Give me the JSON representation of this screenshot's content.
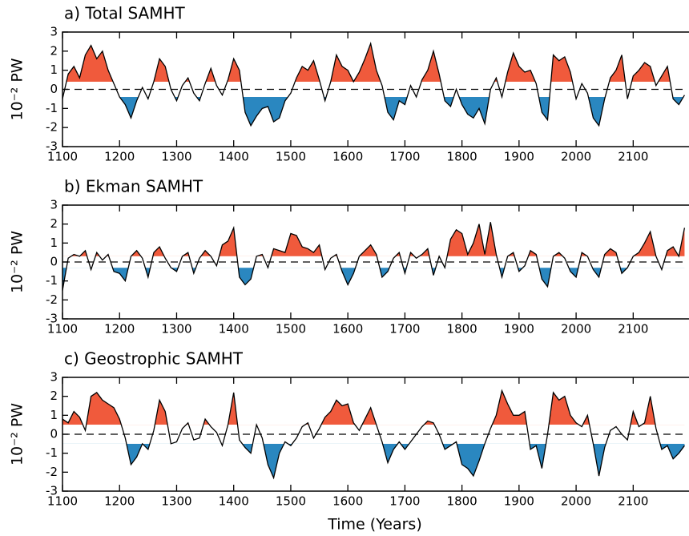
{
  "chart_data": [
    {
      "type": "line",
      "title": "a) Total SAMHT",
      "ylabel": "10⁻² PW",
      "x": [
        1100,
        1110,
        1120,
        1130,
        1140,
        1150,
        1160,
        1170,
        1180,
        1190,
        1200,
        1210,
        1220,
        1230,
        1240,
        1250,
        1260,
        1270,
        1280,
        1290,
        1300,
        1310,
        1320,
        1330,
        1340,
        1350,
        1360,
        1370,
        1380,
        1390,
        1400,
        1410,
        1420,
        1430,
        1440,
        1450,
        1460,
        1470,
        1480,
        1490,
        1500,
        1510,
        1520,
        1530,
        1540,
        1550,
        1560,
        1570,
        1580,
        1590,
        1600,
        1610,
        1620,
        1630,
        1640,
        1650,
        1660,
        1670,
        1680,
        1690,
        1700,
        1710,
        1720,
        1730,
        1740,
        1750,
        1760,
        1770,
        1780,
        1790,
        1800,
        1810,
        1820,
        1830,
        1840,
        1850,
        1860,
        1870,
        1880,
        1890,
        1900,
        1910,
        1920,
        1930,
        1940,
        1950,
        1960,
        1970,
        1980,
        1990,
        2000,
        2010,
        2020,
        2030,
        2040,
        2050,
        2060,
        2070,
        2080,
        2090,
        2100,
        2110,
        2120,
        2130,
        2140,
        2150,
        2160,
        2170,
        2180,
        2190
      ],
      "values": [
        -0.5,
        0.8,
        1.2,
        0.6,
        1.8,
        2.3,
        1.6,
        2.0,
        1.0,
        0.3,
        -0.4,
        -0.8,
        -1.5,
        -0.6,
        0.1,
        -0.5,
        0.4,
        1.6,
        1.2,
        0.0,
        -0.6,
        0.2,
        0.6,
        -0.2,
        -0.6,
        0.3,
        1.1,
        0.2,
        -0.3,
        0.5,
        1.6,
        1.0,
        -1.2,
        -1.9,
        -1.4,
        -1.0,
        -0.9,
        -1.7,
        -1.5,
        -0.6,
        -0.2,
        0.6,
        1.2,
        1.0,
        1.5,
        0.5,
        -0.6,
        0.4,
        1.8,
        1.2,
        1.0,
        0.4,
        0.9,
        1.6,
        2.4,
        1.0,
        0.2,
        -1.2,
        -1.6,
        -0.6,
        -0.8,
        0.2,
        -0.4,
        0.5,
        1.0,
        2.0,
        0.8,
        -0.6,
        -0.9,
        0.0,
        -0.8,
        -1.3,
        -1.5,
        -1.0,
        -1.8,
        0.0,
        0.6,
        -0.4,
        0.9,
        1.9,
        1.2,
        0.9,
        1.0,
        0.3,
        -1.2,
        -1.6,
        1.8,
        1.5,
        1.7,
        0.9,
        -0.5,
        0.3,
        -0.2,
        -1.5,
        -1.9,
        -0.5,
        0.6,
        1.0,
        1.8,
        -0.5,
        0.7,
        1.0,
        1.4,
        1.2,
        0.2,
        0.7,
        1.2,
        -0.5,
        -0.8,
        -0.3
      ],
      "shade_above": 0.4,
      "shade_below": -0.4,
      "color_above": "#f05a3c",
      "color_below": "#2a87c0",
      "xlim": [
        1100,
        2195
      ],
      "xticks": [
        1100,
        1200,
        1300,
        1400,
        1500,
        1600,
        1700,
        1800,
        1900,
        2000,
        2100
      ],
      "ylim": [
        -3,
        3
      ],
      "yticks": [
        -3,
        -2,
        -1,
        0,
        1,
        2,
        3
      ]
    },
    {
      "type": "line",
      "title": "b) Ekman SAMHT",
      "ylabel": "10⁻² PW",
      "x": [
        1100,
        1110,
        1120,
        1130,
        1140,
        1150,
        1160,
        1170,
        1180,
        1190,
        1200,
        1210,
        1220,
        1230,
        1240,
        1250,
        1260,
        1270,
        1280,
        1290,
        1300,
        1310,
        1320,
        1330,
        1340,
        1350,
        1360,
        1370,
        1380,
        1390,
        1400,
        1410,
        1420,
        1430,
        1440,
        1450,
        1460,
        1470,
        1480,
        1490,
        1500,
        1510,
        1520,
        1530,
        1540,
        1550,
        1560,
        1570,
        1580,
        1590,
        1600,
        1610,
        1620,
        1630,
        1640,
        1650,
        1660,
        1670,
        1680,
        1690,
        1700,
        1710,
        1720,
        1730,
        1740,
        1750,
        1760,
        1770,
        1780,
        1790,
        1800,
        1810,
        1820,
        1830,
        1840,
        1850,
        1860,
        1870,
        1880,
        1890,
        1900,
        1910,
        1920,
        1930,
        1940,
        1950,
        1960,
        1970,
        1980,
        1990,
        2000,
        2010,
        2020,
        2030,
        2040,
        2050,
        2060,
        2070,
        2080,
        2090,
        2100,
        2110,
        2120,
        2130,
        2140,
        2150,
        2160,
        2170,
        2180,
        2190
      ],
      "values": [
        -1.5,
        0.2,
        0.4,
        0.3,
        0.6,
        -0.4,
        0.5,
        0.1,
        0.4,
        -0.5,
        -0.6,
        -1.0,
        0.3,
        0.6,
        0.2,
        -0.8,
        0.5,
        0.8,
        0.2,
        -0.3,
        -0.5,
        0.3,
        0.5,
        -0.6,
        0.2,
        0.6,
        0.3,
        -0.2,
        0.9,
        1.1,
        1.8,
        -0.8,
        -1.2,
        -0.9,
        0.3,
        0.4,
        -0.3,
        0.7,
        0.6,
        0.5,
        1.5,
        1.4,
        0.8,
        0.7,
        0.5,
        0.9,
        -0.4,
        0.2,
        0.4,
        -0.5,
        -1.2,
        -0.6,
        0.3,
        0.6,
        0.9,
        0.4,
        -0.8,
        -0.5,
        0.2,
        0.5,
        -0.6,
        0.5,
        0.2,
        0.4,
        0.7,
        -0.7,
        0.3,
        -0.3,
        1.2,
        1.7,
        1.5,
        0.4,
        1.0,
        2.0,
        0.4,
        2.1,
        0.4,
        -0.8,
        0.3,
        0.5,
        -0.5,
        -0.2,
        0.6,
        0.4,
        -0.9,
        -1.3,
        0.3,
        0.5,
        0.2,
        -0.5,
        -0.8,
        0.5,
        0.3,
        -0.4,
        -0.8,
        0.4,
        0.7,
        0.5,
        -0.6,
        -0.3,
        0.3,
        0.5,
        1.0,
        1.6,
        0.3,
        -0.4,
        0.6,
        0.8,
        0.3,
        1.8
      ],
      "shade_above": 0.3,
      "shade_below": -0.3,
      "color_above": "#f05a3c",
      "color_below": "#2a87c0",
      "xlim": [
        1100,
        2195
      ],
      "xticks": [
        1100,
        1200,
        1300,
        1400,
        1500,
        1600,
        1700,
        1800,
        1900,
        2000,
        2100
      ],
      "ylim": [
        -3,
        3
      ],
      "yticks": [
        -3,
        -2,
        -1,
        0,
        1,
        2,
        3
      ]
    },
    {
      "type": "line",
      "title": "c) Geostrophic SAMHT",
      "ylabel": "10⁻² PW",
      "xlabel": "Time (Years)",
      "x": [
        1100,
        1110,
        1120,
        1130,
        1140,
        1150,
        1160,
        1170,
        1180,
        1190,
        1200,
        1210,
        1220,
        1230,
        1240,
        1250,
        1260,
        1270,
        1280,
        1290,
        1300,
        1310,
        1320,
        1330,
        1340,
        1350,
        1360,
        1370,
        1380,
        1390,
        1400,
        1410,
        1420,
        1430,
        1440,
        1450,
        1460,
        1470,
        1480,
        1490,
        1500,
        1510,
        1520,
        1530,
        1540,
        1550,
        1560,
        1570,
        1580,
        1590,
        1600,
        1610,
        1620,
        1630,
        1640,
        1650,
        1660,
        1670,
        1680,
        1690,
        1700,
        1710,
        1720,
        1730,
        1740,
        1750,
        1760,
        1770,
        1780,
        1790,
        1800,
        1810,
        1820,
        1830,
        1840,
        1850,
        1860,
        1870,
        1880,
        1890,
        1900,
        1910,
        1920,
        1930,
        1940,
        1950,
        1960,
        1970,
        1980,
        1990,
        2000,
        2010,
        2020,
        2030,
        2040,
        2050,
        2060,
        2070,
        2080,
        2090,
        2100,
        2110,
        2120,
        2130,
        2140,
        2150,
        2160,
        2170,
        2180,
        2190
      ],
      "values": [
        0.8,
        0.6,
        1.2,
        0.9,
        0.2,
        2.0,
        2.2,
        1.8,
        1.6,
        1.4,
        0.8,
        -0.2,
        -1.6,
        -1.2,
        -0.5,
        -0.8,
        0.2,
        1.8,
        1.2,
        -0.5,
        -0.4,
        0.3,
        0.6,
        -0.3,
        -0.2,
        0.8,
        0.4,
        0.1,
        -0.6,
        0.5,
        2.2,
        -0.3,
        -0.7,
        -1.0,
        0.5,
        -0.2,
        -1.6,
        -2.3,
        -1.0,
        -0.4,
        -0.6,
        -0.2,
        0.4,
        0.6,
        -0.2,
        0.3,
        0.9,
        1.2,
        1.8,
        1.5,
        1.6,
        0.6,
        0.2,
        0.8,
        1.4,
        0.5,
        -0.4,
        -1.5,
        -0.8,
        -0.4,
        -0.8,
        -0.4,
        0.0,
        0.4,
        0.7,
        0.6,
        0.0,
        -0.8,
        -0.6,
        -0.4,
        -1.6,
        -1.8,
        -2.2,
        -1.4,
        -0.5,
        0.3,
        1.0,
        2.3,
        1.6,
        1.0,
        1.0,
        1.2,
        -0.8,
        -0.6,
        -1.8,
        0.0,
        2.2,
        1.8,
        2.0,
        1.0,
        0.6,
        0.4,
        1.0,
        -0.5,
        -2.2,
        -0.7,
        0.2,
        0.4,
        0.0,
        -0.3,
        1.2,
        0.4,
        0.6,
        2.0,
        0.3,
        -0.8,
        -0.6,
        -1.3,
        -1.0,
        -0.6
      ],
      "shade_above": 0.5,
      "shade_below": -0.5,
      "color_above": "#f05a3c",
      "color_below": "#2a87c0",
      "xlim": [
        1100,
        2195
      ],
      "xticks": [
        1100,
        1200,
        1300,
        1400,
        1500,
        1600,
        1700,
        1800,
        1900,
        2000,
        2100
      ],
      "ylim": [
        -3,
        3
      ],
      "yticks": [
        -3,
        -2,
        -1,
        0,
        1,
        2,
        3
      ]
    }
  ]
}
